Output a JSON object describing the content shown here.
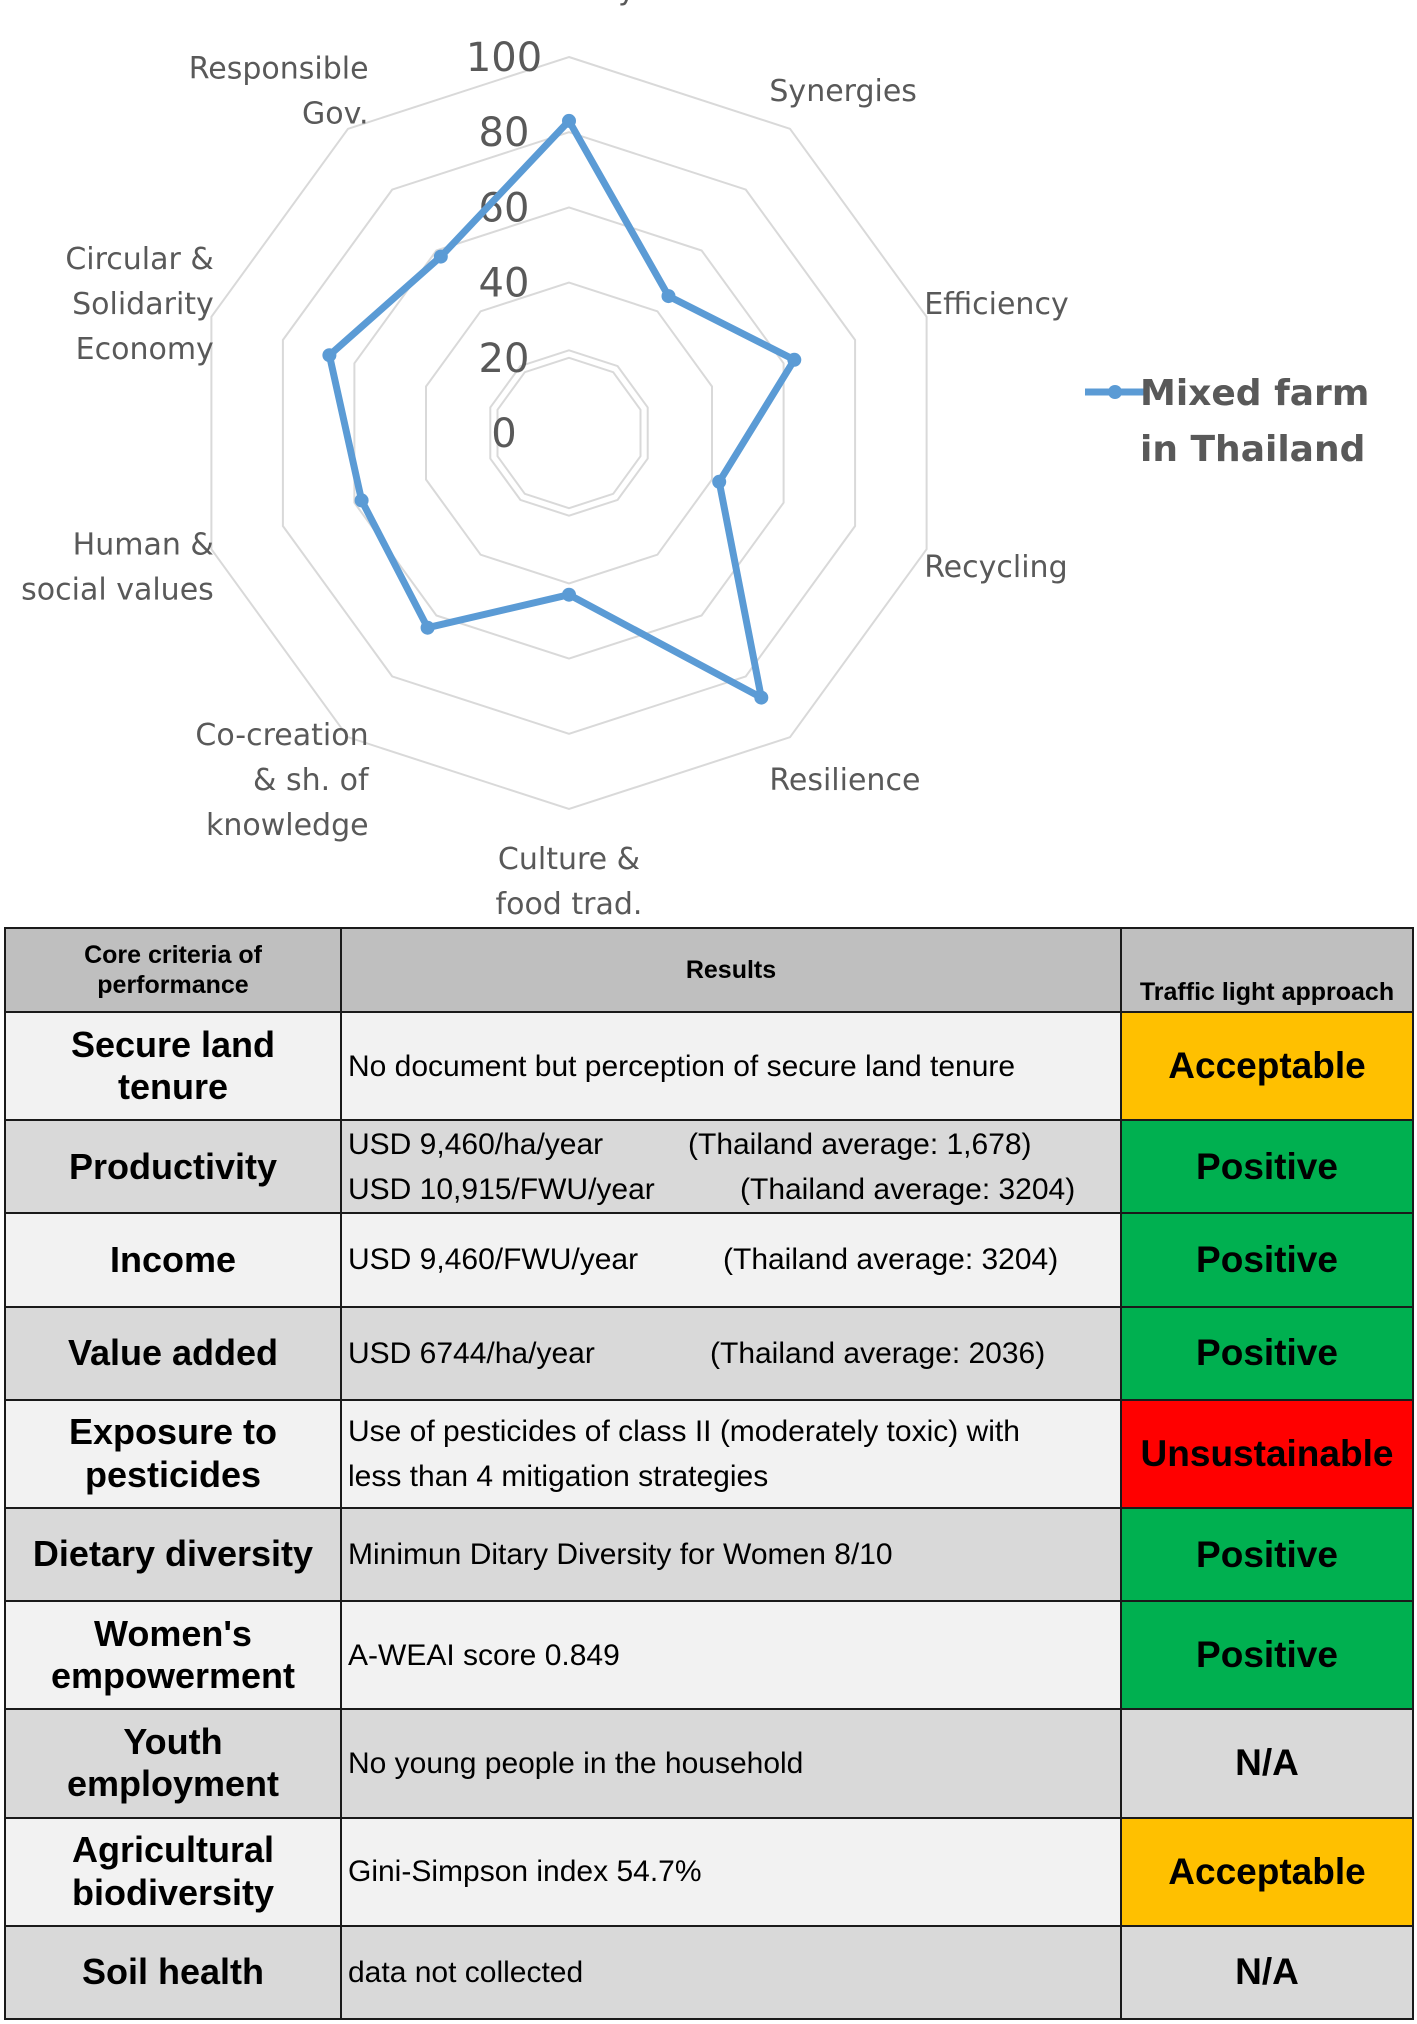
{
  "chart_data": {
    "type": "radar",
    "categories": [
      "Diversity",
      "Synergies",
      "Efficiency",
      "Recycling",
      "Resilience",
      "Culture & food trad.",
      "Co-creation & sh. of knowledge",
      "Human & social values",
      "Circular & Solidarity Economy",
      "Responsible Gov."
    ],
    "category_lines": [
      [
        "Diversity"
      ],
      [
        "Synergies"
      ],
      [
        "Efficiency"
      ],
      [
        "Recycling"
      ],
      [
        "Resilience"
      ],
      [
        "Culture &",
        "food trad."
      ],
      [
        "Co-creation",
        "& sh. of",
        "knowledge"
      ],
      [
        "Human &",
        "social values"
      ],
      [
        "Circular &",
        "Solidarity",
        "Economy"
      ],
      [
        "Responsible",
        "Gov."
      ]
    ],
    "series": [
      {
        "name": "Mixed farm in Thailand",
        "name_lines": [
          "Mixed farm",
          "in Thailand"
        ],
        "values": [
          83,
          45,
          63,
          42,
          87,
          43,
          64,
          58,
          67,
          58
        ]
      }
    ],
    "rlim": [
      0,
      100
    ],
    "ticks": [
      0,
      20,
      40,
      60,
      80,
      100
    ],
    "grid": true,
    "legend_position": "right",
    "colors": {
      "series": "#5b9bd5",
      "grid": "#d9d9d9",
      "labels": "#595959"
    }
  },
  "table": {
    "headers": {
      "criteria_lines": [
        "Core criteria of",
        "performance"
      ],
      "results": "Results",
      "traffic": "Traffic light approach"
    },
    "rows": [
      {
        "criteria_lines": [
          "Secure land",
          "tenure"
        ],
        "results": [
          [
            "No document but perception of secure land tenure",
            ""
          ]
        ],
        "status": "Acceptable",
        "status_color": "#ffc000",
        "status_text_color": "#000000"
      },
      {
        "criteria_lines": [
          "Productivity"
        ],
        "results": [
          [
            "USD 9,460/ha/year",
            "(Thailand average: 1,678)"
          ],
          [
            "USD 10,915/FWU/year",
            "(Thailand average: 3204)"
          ]
        ],
        "status": "Positive",
        "status_color": "#00b050",
        "status_text_color": "#000000"
      },
      {
        "criteria_lines": [
          "Income"
        ],
        "results": [
          [
            "USD 9,460/FWU/year",
            "(Thailand average: 3204)"
          ]
        ],
        "status": "Positive",
        "status_color": "#00b050",
        "status_text_color": "#000000"
      },
      {
        "criteria_lines": [
          "Value added"
        ],
        "results": [
          [
            "USD 6744/ha/year",
            "(Thailand average: 2036)"
          ]
        ],
        "status": "Positive",
        "status_color": "#00b050",
        "status_text_color": "#000000"
      },
      {
        "criteria_lines": [
          "Exposure to",
          "pesticides"
        ],
        "results": [
          [
            "Use of pesticides of class II (moderately toxic) with",
            ""
          ],
          [
            "less than 4 mitigation strategies",
            ""
          ]
        ],
        "status": "Unsustainable",
        "status_color": "#ff0000",
        "status_text_color": "#000000"
      },
      {
        "criteria_lines": [
          "Dietary diversity"
        ],
        "results": [
          [
            "Minimun Ditary Diversity for Women 8/10",
            ""
          ]
        ],
        "status": "Positive",
        "status_color": "#00b050",
        "status_text_color": "#000000"
      },
      {
        "criteria_lines": [
          "Women's",
          "empowerment"
        ],
        "results": [
          [
            "A-WEAI score 0.849",
            ""
          ]
        ],
        "status": "Positive",
        "status_color": "#00b050",
        "status_text_color": "#000000"
      },
      {
        "criteria_lines": [
          "Youth",
          "employment"
        ],
        "results": [
          [
            "No young people in the household",
            ""
          ]
        ],
        "status": "N/A",
        "status_color": "#d9d9d9",
        "status_text_color": "#000000"
      },
      {
        "criteria_lines": [
          "Agricultural",
          "biodiversity"
        ],
        "results": [
          [
            "Gini-Simpson index 54.7%",
            ""
          ]
        ],
        "status": "Acceptable",
        "status_color": "#ffc000",
        "status_text_color": "#000000"
      },
      {
        "criteria_lines": [
          "Soil health"
        ],
        "results": [
          [
            "data not collected",
            ""
          ]
        ],
        "status": "N/A",
        "status_color": "#d9d9d9",
        "status_text_color": "#000000"
      }
    ]
  }
}
